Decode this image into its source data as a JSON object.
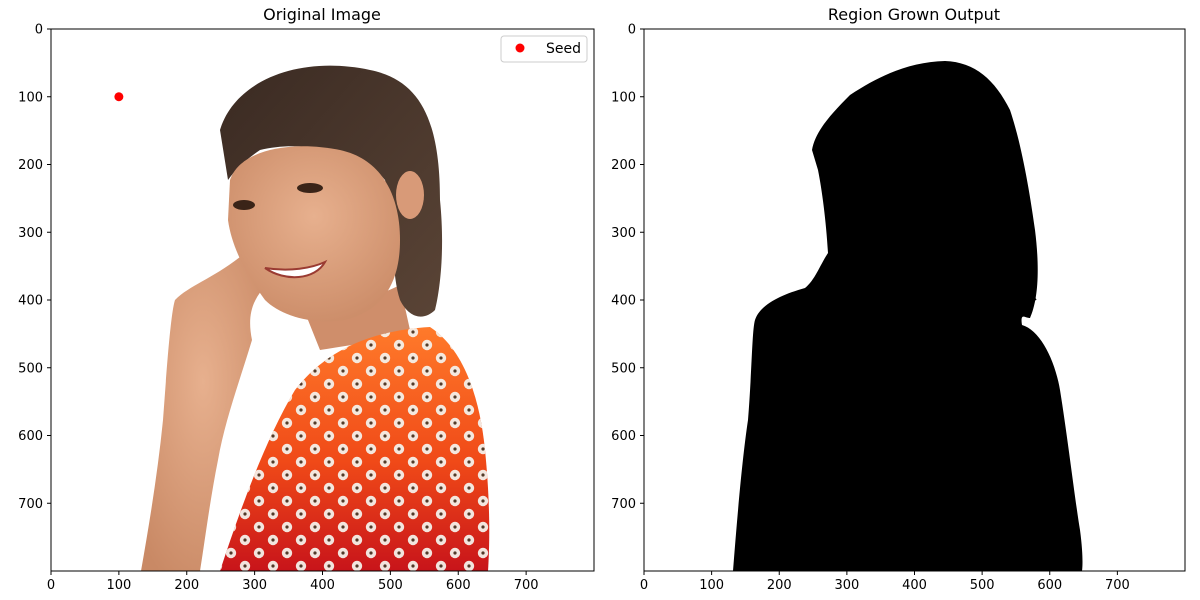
{
  "chart_data": [
    {
      "type": "image",
      "title": "Original Image",
      "xlim": [
        0,
        800
      ],
      "ylim": [
        800,
        0
      ],
      "x_ticks": [
        0,
        100,
        200,
        300,
        400,
        500,
        600,
        700
      ],
      "y_ticks": [
        0,
        100,
        200,
        300,
        400,
        500,
        600,
        700
      ],
      "content": "photo",
      "series": [
        {
          "name": "Seed",
          "type": "scatter",
          "color": "#ff0000",
          "points": [
            {
              "x": 100,
              "y": 100
            }
          ]
        }
      ],
      "legend": {
        "position": "top-right",
        "entries": [
          "Seed"
        ]
      }
    },
    {
      "type": "image",
      "title": "Region Grown Output",
      "xlim": [
        0,
        800
      ],
      "ylim": [
        800,
        0
      ],
      "x_ticks": [
        0,
        100,
        200,
        300,
        400,
        500,
        600,
        700
      ],
      "y_ticks": [
        0,
        100,
        200,
        300,
        400,
        500,
        600,
        700
      ],
      "content": "binary-mask",
      "colors": {
        "background": "#ffffff",
        "region": "#000000"
      }
    }
  ]
}
